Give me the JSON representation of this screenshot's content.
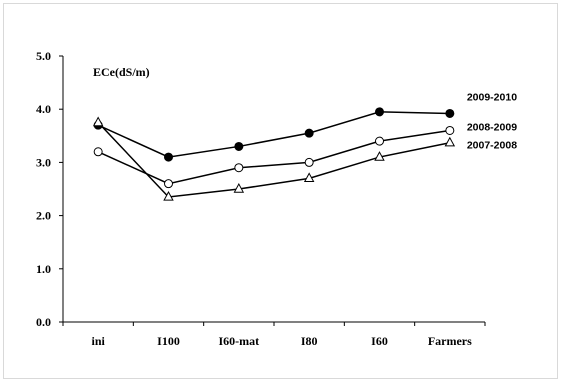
{
  "chart_data": {
    "type": "line",
    "title": "",
    "ylabel": "ECe(dS/m)",
    "xlabel": "",
    "categories": [
      "ini",
      "I100",
      "I60-mat",
      "I80",
      "I60",
      "Farmers"
    ],
    "ylim": [
      0,
      5
    ],
    "yticks": [
      "0.0",
      "1.0",
      "2.0",
      "3.0",
      "4.0",
      "5.0"
    ],
    "grid": false,
    "series": [
      {
        "name": "2009-2010",
        "marker": "filled-circle",
        "values": [
          3.7,
          3.1,
          3.3,
          3.55,
          3.95,
          3.92
        ]
      },
      {
        "name": "2008-2009",
        "marker": "open-circle",
        "values": [
          3.2,
          2.6,
          2.9,
          3.0,
          3.4,
          3.6
        ]
      },
      {
        "name": "2007-2008",
        "marker": "open-triangle",
        "values": [
          3.75,
          2.35,
          2.5,
          2.7,
          3.1,
          3.37
        ]
      }
    ]
  }
}
